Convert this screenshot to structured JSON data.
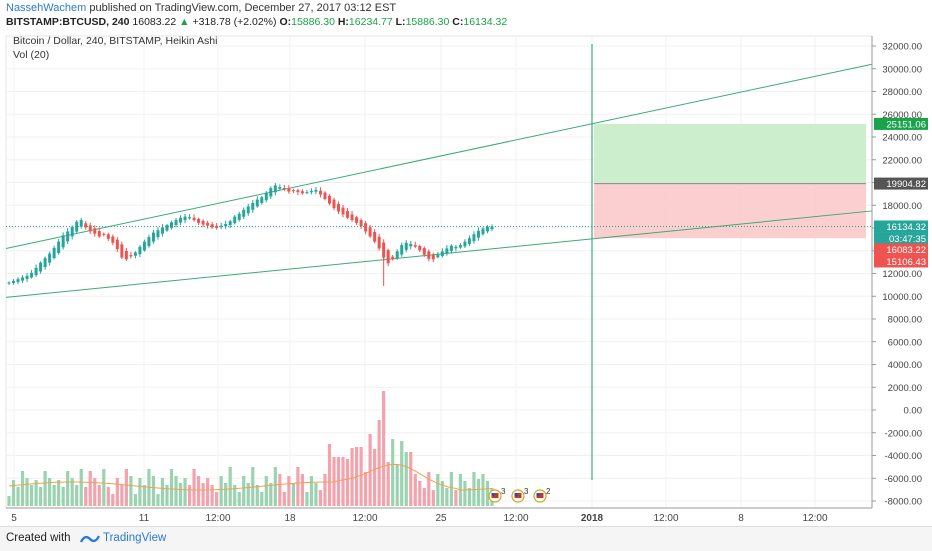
{
  "header": {
    "author": "NassehWachem",
    "published": "published on TradingView.com, December 27, 2017 03:12 EST",
    "symbol_interval": "BITSTAMP:BTCUSD, 240",
    "last": "16083.22",
    "change": "+318.78 (+2.02%)",
    "o_label": "O:",
    "o_value": "15886.30",
    "h_label": "H:",
    "h_value": "16234.77",
    "l_label": "L:",
    "l_value": "15886.30",
    "c_label": "C:",
    "c_value": "16134.32"
  },
  "legend": {
    "title": "Bitcoin / Dollar, 240, BITSTAMP, Heikin Ashi",
    "volume": "Vol (20)"
  },
  "footer": {
    "created_with": "Created with",
    "brand": "TradingView"
  },
  "colors": {
    "up": "#26a69a",
    "down": "#ef5350",
    "channel": "#3daa7a",
    "vol_up": "#9bd2b0",
    "vol_down": "#f2a3ad",
    "vol_ma": "#f0a050",
    "target_zone": "#c8ecc8",
    "stop_zone": "#fbcaca"
  },
  "chart_data": {
    "type": "candlestick",
    "chart_style": "Heikin Ashi",
    "y_axis": {
      "ticks": [
        "32000.00",
        "30000.00",
        "28000.00",
        "26000.00",
        "24000.00",
        "22000.00",
        "20000.00",
        "18000.00",
        "16000.00",
        "14000.00",
        "12000.00",
        "10000.00",
        "8000.00",
        "6000.00",
        "4000.00",
        "2000.00",
        "0.00",
        "-2000.00",
        "-4000.00",
        "-6000.00",
        "-8000.00"
      ],
      "range": [
        -8700,
        32500
      ]
    },
    "x_axis": {
      "ticks": [
        "5",
        "11",
        "12:00",
        "18",
        "12:00",
        "25",
        "12:00",
        "2018",
        "12:00",
        "8",
        "12:00"
      ]
    },
    "price_labels": [
      {
        "value": "25151.06",
        "kind": "target"
      },
      {
        "value": "19904.82",
        "kind": "entry"
      },
      {
        "value": "16134.32",
        "kind": "last"
      },
      {
        "value": "03:47:35",
        "kind": "countdown"
      },
      {
        "value": "16083.22",
        "kind": "bid"
      },
      {
        "value": "15106.43",
        "kind": "stop"
      }
    ],
    "candles_close": [
      11200,
      11350,
      11500,
      11650,
      11800,
      12050,
      12500,
      12950,
      13350,
      13750,
      14250,
      14800,
      15350,
      15700,
      16100,
      16550,
      16700,
      16050,
      15700,
      15500,
      15250,
      15400,
      15050,
      14700,
      14150,
      13400,
      13250,
      13500,
      13850,
      14350,
      14800,
      15200,
      15600,
      15800,
      16050,
      16250,
      16500,
      16700,
      16900,
      17000,
      16950,
      16700,
      16450,
      16300,
      16200,
      16050,
      16000,
      16200,
      16350,
      16600,
      17000,
      17250,
      17600,
      17900,
      18200,
      18500,
      18700,
      19100,
      19500,
      19750,
      19600,
      19400,
      19200,
      19300,
      19150,
      19050,
      19150,
      19250,
      19350,
      18950,
      18550,
      18150,
      17750,
      17450,
      17200,
      16900,
      16700,
      16450,
      16150,
      15700,
      15250,
      14800,
      14200,
      13400,
      12900,
      13250,
      13950,
      14500,
      14700,
      14600,
      14350,
      14050,
      13650,
      13300,
      13250,
      13650,
      13950,
      14200,
      14450,
      14350,
      14500,
      14800,
      15100,
      15450,
      15750,
      15950,
      16100,
      16134
    ],
    "trend_channel": {
      "upper_line": {
        "start": 14200,
        "end": 30400
      },
      "lower_line": {
        "start": 9900,
        "end": 17500
      }
    },
    "position_tool": {
      "entry": 19904.82,
      "target": 25151.06,
      "stop": 15106.43
    },
    "volume_note": "volume pane with 20-period moving average; three economic-calendar event markers",
    "event_markers": [
      "3",
      "3",
      "2"
    ]
  }
}
